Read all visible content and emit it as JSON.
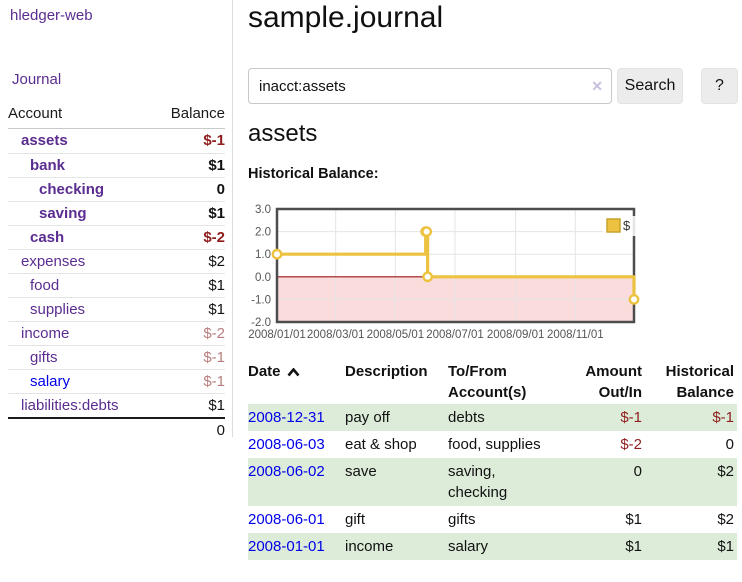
{
  "colors": {
    "accent_purple": "#5b2d90",
    "link_blue": "#0000e8",
    "negative_strong_red": "#8f1d1d",
    "negative_soft_red": "#b87e7e",
    "row_stripe_green": "#ddecd9",
    "series_gold": "#EDC240",
    "negative_region_pink": "#fadcdc",
    "zero_line_red": "#991414"
  },
  "icons": {
    "clear_search": "✕",
    "sort_ascending": "chevron-up"
  },
  "sidebar": {
    "app_title": "hledger-web",
    "journal_link": "Journal",
    "accounts": {
      "header_account": "Account",
      "header_balance": "Balance",
      "rows": [
        {
          "name": "assets",
          "balance": "$-1"
        },
        {
          "name": "bank",
          "balance": "$1"
        },
        {
          "name": "checking",
          "balance": "0"
        },
        {
          "name": "saving",
          "balance": "$1"
        },
        {
          "name": "cash",
          "balance": "$-2"
        },
        {
          "name": "expenses",
          "balance": "$2"
        },
        {
          "name": "food",
          "balance": "$1"
        },
        {
          "name": "supplies",
          "balance": "$1"
        },
        {
          "name": "income",
          "balance": "$-2"
        },
        {
          "name": "gifts",
          "balance": "$-1"
        },
        {
          "name": "salary",
          "balance": "$-1"
        },
        {
          "name": "liabilities:debts",
          "balance": "$1"
        }
      ],
      "total": "0"
    }
  },
  "main": {
    "title": "sample.journal"
  },
  "search": {
    "query": "inacct:assets",
    "search_button": "Search",
    "help_button": "?"
  },
  "account_page": {
    "heading": "assets",
    "chart_label": "Historical Balance:"
  },
  "chart_data": {
    "type": "line",
    "step": true,
    "title": "Historical Balance",
    "series": [
      {
        "name": "$",
        "color": "#EDC240",
        "points": [
          [
            "2008-01-01",
            1
          ],
          [
            "2008-06-01",
            2
          ],
          [
            "2008-06-02",
            2
          ],
          [
            "2008-06-03",
            0
          ],
          [
            "2008-12-31",
            -1
          ]
        ]
      }
    ],
    "xlim": [
      "2008-01-01",
      "2008-12-31"
    ],
    "ylim": [
      -2,
      3
    ],
    "yticks": [
      {
        "v": 3,
        "label": "3.0"
      },
      {
        "v": 2,
        "label": "2.0"
      },
      {
        "v": 1,
        "label": "1.0"
      },
      {
        "v": 0,
        "label": "0.0"
      },
      {
        "v": -1,
        "label": "-1.0"
      },
      {
        "v": -2,
        "label": "-2.0"
      }
    ],
    "xticks": [
      {
        "d": "2008-01-01",
        "label": "2008/01/01"
      },
      {
        "d": "2008-03-01",
        "label": "2008/03/01"
      },
      {
        "d": "2008-05-01",
        "label": "2008/05/01"
      },
      {
        "d": "2008-07-01",
        "label": "2008/07/01"
      },
      {
        "d": "2008-09-01",
        "label": "2008/09/01"
      },
      {
        "d": "2008-11-01",
        "label": "2008/11/01"
      }
    ],
    "grid": true,
    "legend": {
      "label": "$",
      "position": "top-right"
    },
    "negative_fill": "#fadcdc",
    "zero_line_color": "#991414",
    "grid_color": "#e4e4e4",
    "border_color": "#4d4d4d",
    "axis_text_color": "#555555"
  },
  "register": {
    "headers": {
      "date": "Date",
      "description": "Description",
      "tofrom_l1": "To/From",
      "tofrom_l2": "Account(s)",
      "amount_l1": "Amount",
      "amount_l2": "Out/In",
      "balance_l1": "Historical",
      "balance_l2": "Balance"
    },
    "rows": [
      {
        "date": "2008-12-31",
        "description": "pay off",
        "tofrom": "debts",
        "amount": "$-1",
        "balance": "$-1"
      },
      {
        "date": "2008-06-03",
        "description": "eat & shop",
        "tofrom": "food, supplies",
        "amount": "$-2",
        "balance": "0"
      },
      {
        "date": "2008-06-02",
        "description": "save",
        "tofrom": "saving,",
        "tofrom2": "checking",
        "amount": "0",
        "balance": "$2"
      },
      {
        "date": "2008-06-01",
        "description": "gift",
        "tofrom": "gifts",
        "amount": "$1",
        "balance": "$2"
      },
      {
        "date": "2008-01-01",
        "description": "income",
        "tofrom": "salary",
        "amount": "$1",
        "balance": "$1"
      }
    ]
  }
}
